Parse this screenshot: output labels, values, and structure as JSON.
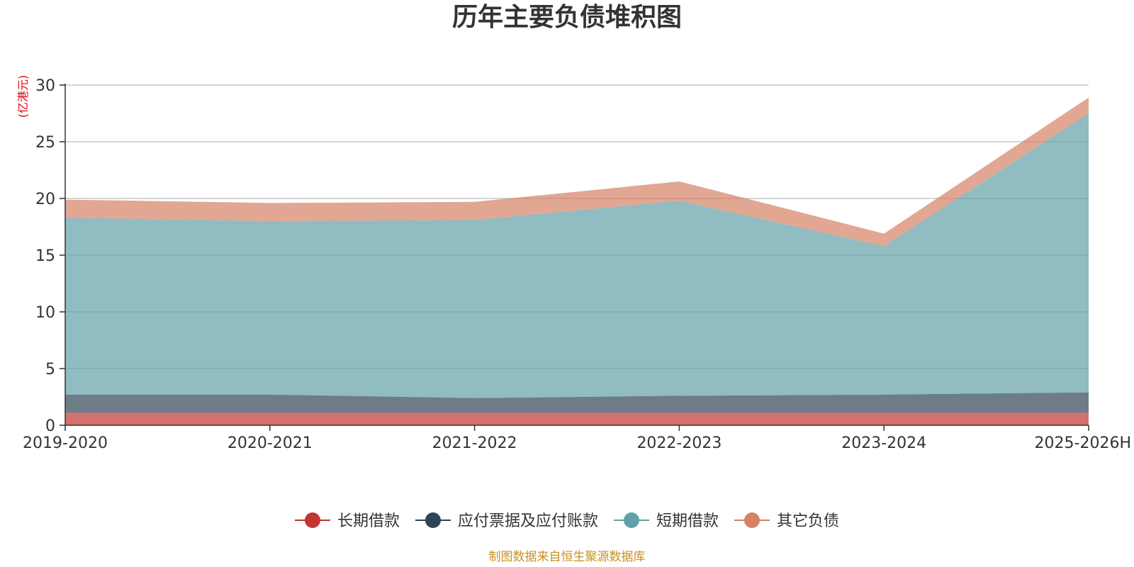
{
  "title": "历年主要负债堆积图",
  "unit": "(亿港元)",
  "source": "制图数据来自恒生聚源数据库",
  "chart_data": {
    "type": "area",
    "stacked": true,
    "title": "历年主要负债堆积图",
    "ylabel": "(亿港元)",
    "ylim": [
      0,
      30
    ],
    "yticks": [
      0,
      5,
      10,
      15,
      20,
      25,
      30
    ],
    "grid": true,
    "legend_position": "bottom",
    "categories": [
      "2019-2020",
      "2020-2021",
      "2021-2022",
      "2022-2023",
      "2023-2024",
      "2025-2026H"
    ],
    "series": [
      {
        "name": "长期借款",
        "color": "#c23531",
        "values": [
          1.1,
          1.1,
          1.1,
          1.1,
          1.1,
          1.1
        ]
      },
      {
        "name": "应付票据及应付账款",
        "color": "#2f4554",
        "values": [
          1.6,
          1.6,
          1.3,
          1.5,
          1.6,
          1.8
        ]
      },
      {
        "name": "短期借款",
        "color": "#61a0a8",
        "values": [
          15.6,
          15.3,
          15.7,
          17.2,
          13.1,
          24.6
        ]
      },
      {
        "name": "其它负债",
        "color": "#d48265",
        "values": [
          1.6,
          1.6,
          1.6,
          1.7,
          1.1,
          1.4
        ]
      }
    ]
  }
}
